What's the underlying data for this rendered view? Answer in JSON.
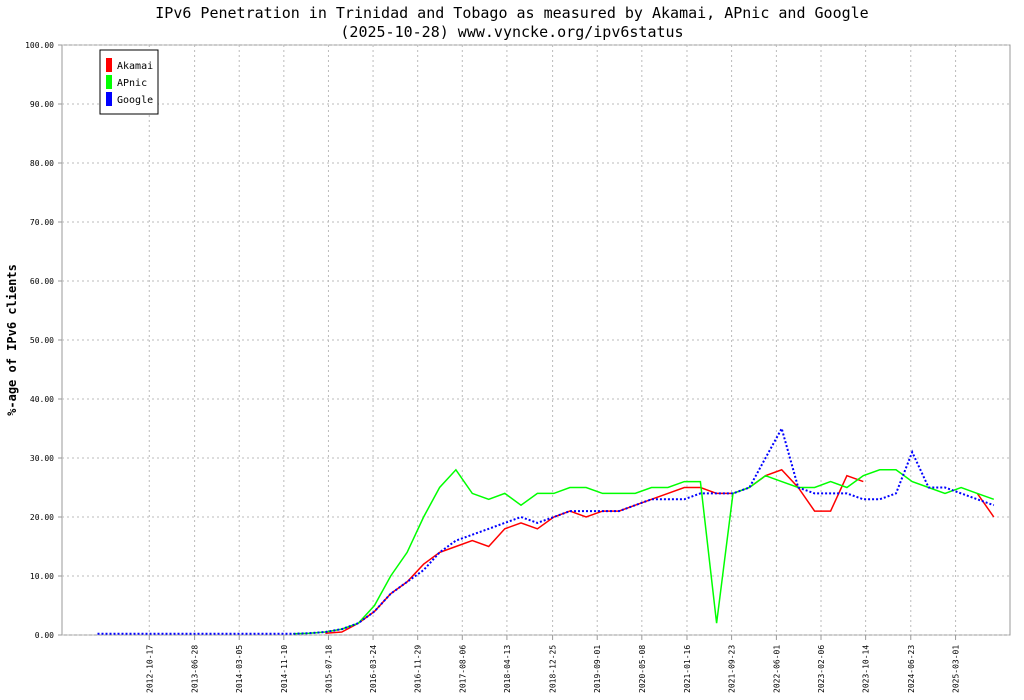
{
  "chart_data": {
    "type": "line",
    "title": "IPv6 Penetration in Trinidad and Tobago as measured by Akamai, APnic and Google",
    "subtitle": "(2025-10-28) www.vyncke.org/ipv6status",
    "y_label": "%-age of IPv6 clients",
    "x": [
      "2012-01-01",
      "2012-04-01",
      "2012-07-01",
      "2012-10-01",
      "2013-01-01",
      "2013-04-01",
      "2013-07-01",
      "2013-10-01",
      "2014-01-01",
      "2014-04-01",
      "2014-07-01",
      "2014-10-01",
      "2015-01-01",
      "2015-04-01",
      "2015-07-01",
      "2015-10-01",
      "2016-01-01",
      "2016-04-01",
      "2016-07-01",
      "2016-10-01",
      "2017-01-01",
      "2017-04-01",
      "2017-07-01",
      "2017-10-01",
      "2018-01-01",
      "2018-04-01",
      "2018-07-01",
      "2018-10-01",
      "2019-01-01",
      "2019-04-01",
      "2019-07-01",
      "2019-10-01",
      "2020-01-01",
      "2020-04-01",
      "2020-07-01",
      "2020-10-01",
      "2021-01-01",
      "2021-04-01",
      "2021-07-01",
      "2021-10-01",
      "2022-01-01",
      "2022-04-01",
      "2022-07-01",
      "2022-10-01",
      "2023-01-01",
      "2023-04-01",
      "2023-07-01",
      "2023-10-01",
      "2024-01-01",
      "2024-04-01",
      "2024-07-01",
      "2024-10-01",
      "2025-01-01",
      "2025-04-01",
      "2025-07-01",
      "2025-10-01"
    ],
    "series": [
      {
        "name": "Akamai",
        "color": "#ff0000",
        "values": [
          null,
          null,
          null,
          null,
          null,
          null,
          null,
          null,
          null,
          null,
          null,
          null,
          null,
          null,
          0.3,
          0.5,
          2,
          4,
          7,
          9,
          12,
          14,
          15,
          16,
          15,
          18,
          19,
          18,
          20,
          21,
          20,
          21,
          21,
          22,
          23,
          24,
          25,
          25,
          24,
          24,
          25,
          27,
          28,
          25,
          21,
          21,
          27,
          26,
          null,
          null,
          null,
          null,
          null,
          null,
          24,
          20
        ]
      },
      {
        "name": "APnic",
        "color": "#00ff00",
        "values": [
          null,
          null,
          null,
          null,
          null,
          null,
          null,
          null,
          null,
          null,
          null,
          null,
          0.2,
          0.3,
          0.5,
          1,
          2,
          5,
          10,
          14,
          20,
          25,
          28,
          24,
          23,
          24,
          22,
          24,
          24,
          25,
          25,
          24,
          24,
          24,
          25,
          25,
          26,
          26,
          2,
          24,
          25,
          27,
          26,
          25,
          25,
          26,
          25,
          27,
          28,
          28,
          26,
          25,
          24,
          25,
          24,
          23
        ]
      },
      {
        "name": "Google",
        "color": "#0000ff",
        "values": [
          0.2,
          0.2,
          0.2,
          0.2,
          0.2,
          0.2,
          0.2,
          0.2,
          0.2,
          0.2,
          0.2,
          0.2,
          0.2,
          0.3,
          0.5,
          1,
          2,
          4,
          7,
          9,
          11,
          14,
          16,
          17,
          18,
          19,
          20,
          19,
          20,
          21,
          21,
          21,
          21,
          22,
          23,
          23,
          23,
          24,
          24,
          24,
          25,
          30,
          35,
          25,
          24,
          24,
          24,
          23,
          23,
          24,
          31,
          25,
          25,
          24,
          23,
          22
        ]
      }
    ],
    "xlim": [
      "2011-06-16",
      "2025-12-31"
    ],
    "xticks": [
      "2012-10-17",
      "2013-06-28",
      "2014-03-05",
      "2014-11-10",
      "2015-07-18",
      "2016-03-24",
      "2016-11-29",
      "2017-08-06",
      "2018-04-13",
      "2018-12-25",
      "2019-09-01",
      "2020-05-08",
      "2021-01-16",
      "2021-09-23",
      "2022-06-01",
      "2023-02-06",
      "2023-10-14",
      "2024-06-23",
      "2025-03-01"
    ],
    "ylim": [
      0,
      100
    ],
    "yticks": [
      {
        "value": 0,
        "label": "0.00"
      },
      {
        "value": 10,
        "label": "10.00"
      },
      {
        "value": 20,
        "label": "20.00"
      },
      {
        "value": 30,
        "label": "30.00"
      },
      {
        "value": 40,
        "label": "40.00"
      },
      {
        "value": 50,
        "label": "50.00"
      },
      {
        "value": 60,
        "label": "60.00"
      },
      {
        "value": 70,
        "label": "70.00"
      },
      {
        "value": 80,
        "label": "80.00"
      },
      {
        "value": 90,
        "label": "90.00"
      },
      {
        "value": 100,
        "label": "100.00"
      }
    ],
    "grid": true,
    "legend": "upper left"
  }
}
